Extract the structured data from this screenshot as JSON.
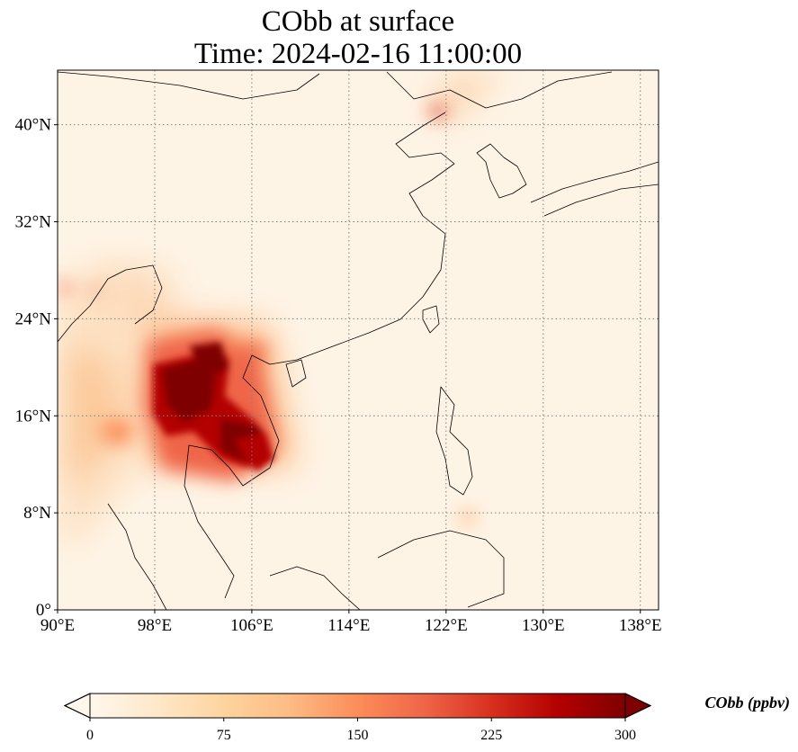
{
  "title": {
    "line1": "CObb at surface",
    "line2": "Time: 2024-02-16 11:00:00"
  },
  "map": {
    "extent": {
      "lon": [
        90,
        139.5
      ],
      "lat": [
        0,
        44.5
      ]
    },
    "lon_ticks": [
      {
        "value": 90,
        "label": "90°E"
      },
      {
        "value": 98,
        "label": "98°E"
      },
      {
        "value": 106,
        "label": "106°E"
      },
      {
        "value": 114,
        "label": "114°E"
      },
      {
        "value": 122,
        "label": "122°E"
      },
      {
        "value": 130,
        "label": "130°E"
      },
      {
        "value": 138,
        "label": "138°E"
      }
    ],
    "lat_ticks": [
      {
        "value": 0,
        "label": "0°"
      },
      {
        "value": 8,
        "label": "8°N"
      },
      {
        "value": 16,
        "label": "16°N"
      },
      {
        "value": 24,
        "label": "24°N"
      },
      {
        "value": 32,
        "label": "32°N"
      },
      {
        "value": 40,
        "label": "40°N"
      }
    ],
    "gridlines": true,
    "gridline_style": "dotted",
    "background_color": "#fef4e6"
  },
  "colorbar": {
    "label": "CObb (ppbv)",
    "min": 0,
    "max": 300,
    "extend": "both",
    "colormap": "OrRd",
    "stops": [
      "#fff7ec",
      "#fee8c8",
      "#fdd49e",
      "#fdbb84",
      "#fc8d59",
      "#ef6548",
      "#d7301f",
      "#b30000",
      "#7f0000"
    ],
    "ticks": [
      {
        "value": 0,
        "label": "0"
      },
      {
        "value": 75,
        "label": "75"
      },
      {
        "value": 150,
        "label": "150"
      },
      {
        "value": 225,
        "label": "225"
      },
      {
        "value": 300,
        "label": "300"
      }
    ]
  }
}
